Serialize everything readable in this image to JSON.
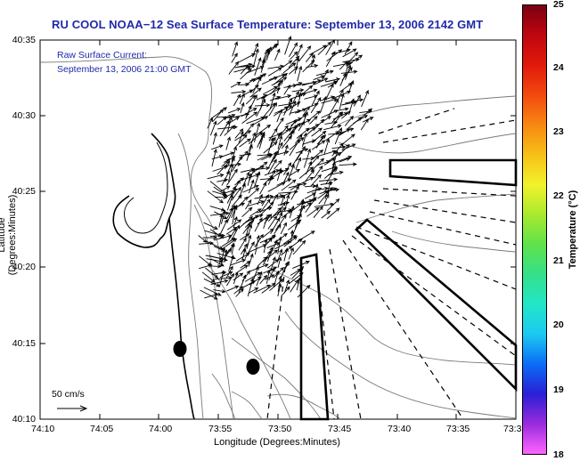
{
  "title": "RU COOL  NOAA−12  Sea Surface Temperature:  September 13, 2006 2142 GMT",
  "inset": {
    "line1": "Raw Surface Current:",
    "line2": "September 13, 2006 21:00 GMT"
  },
  "axes": {
    "xlabel": "Longitude (Degrees:Minutes)",
    "ylabel": "Latitude (Degrees:Minutes)",
    "xticks": [
      "74:10",
      "74:05",
      "74:00",
      "73:55",
      "73:50",
      "73:45",
      "73:40",
      "73:35",
      "73:3"
    ],
    "yticks": [
      "40:35",
      "40:30",
      "40:25",
      "40:20",
      "40:15",
      "40:10"
    ]
  },
  "colorbar": {
    "title": "Temperature (°C)",
    "ticks": [
      "25",
      "24",
      "23",
      "22",
      "21",
      "20",
      "19",
      "18"
    ],
    "range": [
      18,
      25
    ],
    "colors": [
      "#ff66ff",
      "#9a2bdc",
      "#2a1fd6",
      "#0b6cf5",
      "#1cc9f2",
      "#22e6c8",
      "#35e08a",
      "#5fe24b",
      "#a8ea2e",
      "#f2f22b",
      "#f7c018",
      "#f78812",
      "#f24a0e",
      "#e01a0a",
      "#bf0610",
      "#7a0010"
    ]
  },
  "scale": {
    "label": "50 cm/s"
  },
  "colors": {
    "title": "#1f2aa8",
    "coast": "#7a7a7a",
    "vectors": "#000000"
  }
}
